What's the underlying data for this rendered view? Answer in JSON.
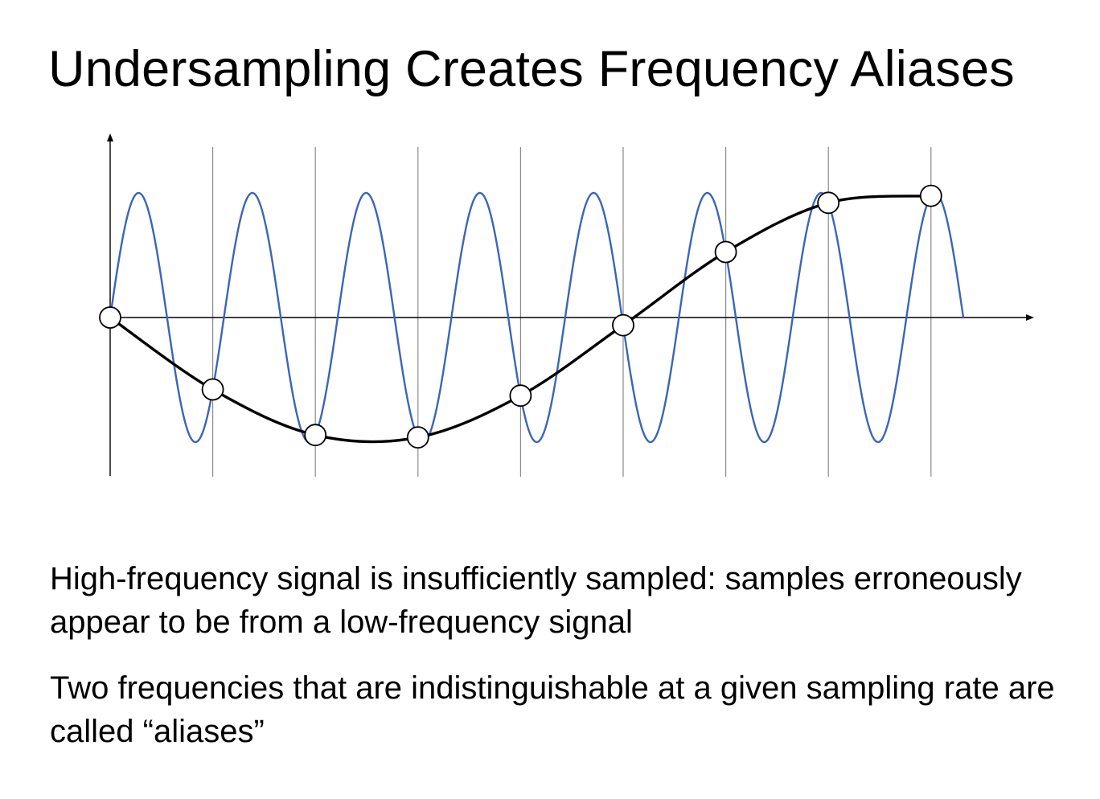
{
  "slide": {
    "title": "Undersampling Creates Frequency Aliases",
    "paragraphs": [
      "High-frequency signal is insufficiently sampled: samples erroneously appear to be from a low-frequency signal",
      "Two frequencies that are indistinguishable at a given sampling rate are called “aliases”"
    ]
  },
  "diagram": {
    "colors": {
      "high_frequency_signal": "#3a66b5",
      "low_frequency_signal": "#000000",
      "sample_lines": "#8a8a8a",
      "axes": "#000000",
      "sample_fill": "#ffffff",
      "sample_stroke": "#000000"
    },
    "high_frequency_cycles": 7.5,
    "sample_count": 9
  }
}
